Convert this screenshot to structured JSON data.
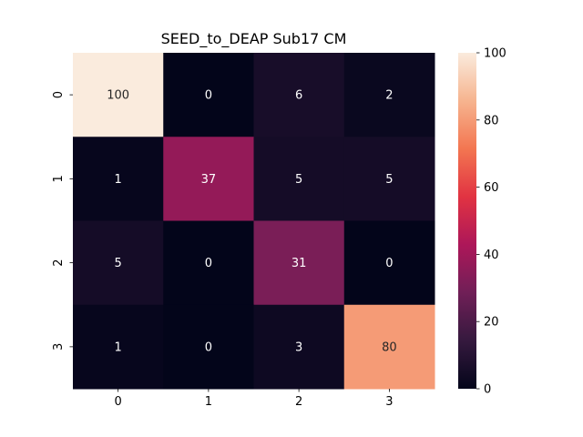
{
  "chart_data": {
    "type": "heatmap",
    "title": "SEED_to_DEAP Sub17 CM",
    "xlabel": "",
    "ylabel": "",
    "x_categories": [
      "0",
      "1",
      "2",
      "3"
    ],
    "y_categories": [
      "0",
      "1",
      "2",
      "3"
    ],
    "values": [
      [
        100,
        0,
        6,
        2
      ],
      [
        1,
        37,
        5,
        5
      ],
      [
        5,
        0,
        31,
        0
      ],
      [
        1,
        0,
        3,
        80
      ]
    ],
    "colorbar": {
      "range": [
        0,
        100
      ],
      "ticks": [
        "0",
        "20",
        "40",
        "60",
        "80",
        "100"
      ]
    },
    "colormap": "rocket",
    "colormap_stops": [
      "#03051a",
      "#35193e",
      "#701f57",
      "#ad1759",
      "#e13342",
      "#f37651",
      "#f6b48f",
      "#faebdd"
    ]
  }
}
